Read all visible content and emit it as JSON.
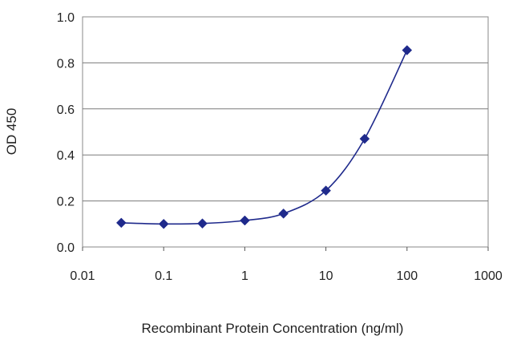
{
  "chart_data": {
    "type": "line",
    "title": "",
    "xlabel": "Recombinant Protein Concentration (ng/ml)",
    "ylabel": "OD 450",
    "xscale": "log",
    "xlim": [
      0.01,
      1000
    ],
    "ylim": [
      0.0,
      1.0
    ],
    "x_ticks": [
      "0.01",
      "0.1",
      "1",
      "10",
      "100",
      "1000"
    ],
    "y_ticks": [
      "0.0",
      "0.2",
      "0.4",
      "0.6",
      "0.8",
      "1.0"
    ],
    "grid": "horizontal",
    "legend": "none",
    "series": [
      {
        "x": [
          0.03,
          0.1,
          0.3,
          1,
          3,
          10,
          30,
          100
        ],
        "y": [
          0.105,
          0.1,
          0.102,
          0.115,
          0.145,
          0.245,
          0.47,
          0.855
        ],
        "marker": "diamond",
        "color": "#1f2a8c"
      }
    ]
  }
}
